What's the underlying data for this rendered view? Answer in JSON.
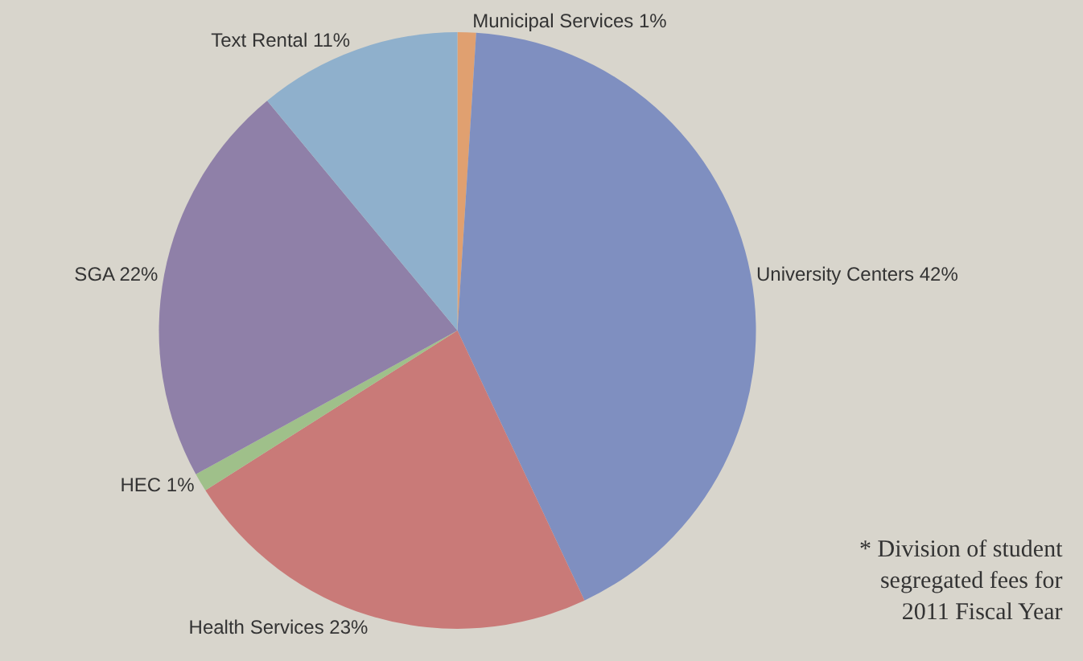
{
  "chart_data": {
    "type": "pie",
    "categories": [
      "Municipal Services",
      "University Centers",
      "Health Services",
      "HEC",
      "SGA",
      "Text Rental"
    ],
    "values": [
      1,
      42,
      23,
      1,
      22,
      11
    ],
    "value_labels": [
      "1%",
      "42%",
      "23%",
      "1%",
      "22%",
      "11%"
    ],
    "colors": [
      "#e0a070",
      "#7f8fc0",
      "#c97a78",
      "#9fc08a",
      "#8f80a8",
      "#8fb0cc"
    ],
    "annotations": [
      "* Division of student\nsegregated fees for\n2011 Fiscal Year"
    ]
  }
}
